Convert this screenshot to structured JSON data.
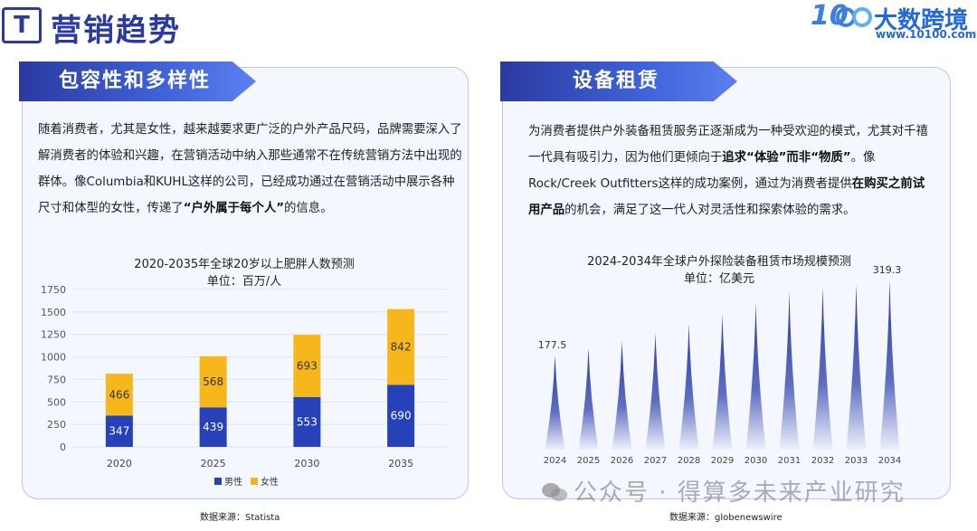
{
  "header": {
    "icon_letter": "T",
    "title": "营销趋势",
    "logo_number": "10",
    "logo_name": "大数跨境",
    "logo_url": "www.10100.com"
  },
  "left_panel": {
    "title": "包容性和多样性",
    "text_1": "随着消费者，尤其是女性，越来越要求更广泛的户外产品尺码，品牌需要深入了解消费者的体验和兴趣，在营销活动中纳入那些通常不在传统营销方法中出现的群体。像Columbia和KUHL这样的公司，已经成功通过在营销活动中展示各种尺寸和体型的女性，传递了",
    "text_bold": "“户外属于每个人”",
    "text_2": "的信息。",
    "source": "数据来源：Statista"
  },
  "right_panel": {
    "title": "设备租赁",
    "text_1": "为消费者提供户外装备租赁服务正逐渐成为一种受欢迎的模式，尤其对千禧一代具有吸引力，因为他们更倾向于",
    "text_bold_1": "追求“体验”而非“物质”",
    "text_2": "。像Rock/Creek Outfitters这样的成功案例，通过为消费者提供",
    "text_bold_2": "在购买之前试用产品",
    "text_3": "的机会，满足了这一代人对灵活性和探索体验的需求。",
    "source": "数据来源：globenewswire"
  },
  "watermark": "公众号 · 得算多未来产业研究",
  "colors": {
    "male": "#2741b8",
    "female": "#f5b71b",
    "spike": "#2a3aa0",
    "accent": "#2b3a9e"
  },
  "chart_data": [
    {
      "type": "bar",
      "stacked": true,
      "title": "2020-2035年全球20岁以上肥胖人数预测",
      "subtitle": "单位：百万/人",
      "categories": [
        "2020",
        "2025",
        "2030",
        "2035"
      ],
      "series": [
        {
          "name": "男性",
          "values": [
            347,
            439,
            553,
            690
          ]
        },
        {
          "name": "女性",
          "values": [
            466,
            568,
            693,
            842
          ]
        }
      ],
      "ylim": [
        0,
        1750
      ],
      "yticks": [
        0,
        250,
        500,
        750,
        1000,
        1250,
        1500,
        1750
      ],
      "grid": true,
      "legend": "bottom"
    },
    {
      "type": "bar",
      "title": "2024-2034年全球户外探险装备租赁市场规模预测",
      "subtitle": "单位：亿美元",
      "categories": [
        "2024",
        "2025",
        "2026",
        "2027",
        "2028",
        "2029",
        "2030",
        "2031",
        "2032",
        "2033",
        "2034"
      ],
      "values": [
        177.5,
        191.1,
        205.8,
        221.6,
        238.6,
        256.9,
        276.6,
        297.8,
        306.0,
        312.0,
        319.3
      ],
      "labeled_values": {
        "2024": "177.5",
        "2034": "319.3"
      },
      "grid": false
    }
  ]
}
